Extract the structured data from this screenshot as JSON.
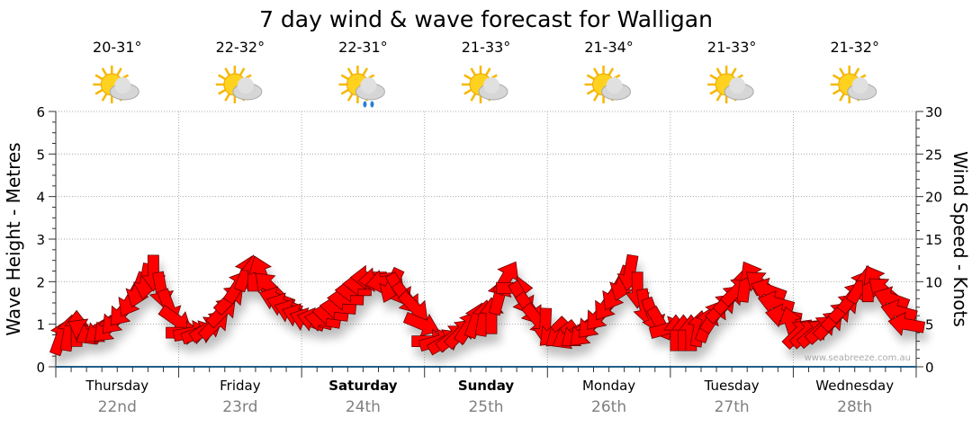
{
  "chart_data": {
    "type": "line",
    "title": "7 day wind & wave forecast for Walligan",
    "ylabel": "Wave Height - Metres",
    "y2label": "Wind Speed - Knots",
    "ylim": [
      0,
      6
    ],
    "y2lim": [
      0,
      30
    ],
    "yticks": [
      "0",
      "1",
      "2",
      "3",
      "4",
      "5",
      "6"
    ],
    "y2ticks": [
      "0",
      "5",
      "10",
      "15",
      "20",
      "25",
      "30"
    ],
    "grid": true,
    "watermark": "www.seabreeze.com.au",
    "days": [
      {
        "name": "Thursday",
        "date": "22nd",
        "temp": "20-31°",
        "weather": "partly-cloudy",
        "bold": false
      },
      {
        "name": "Friday",
        "date": "23rd",
        "temp": "22-32°",
        "weather": "partly-cloudy",
        "bold": false
      },
      {
        "name": "Saturday",
        "date": "24th",
        "temp": "22-31°",
        "weather": "showers",
        "bold": true
      },
      {
        "name": "Sunday",
        "date": "25th",
        "temp": "21-33°",
        "weather": "partly-cloudy",
        "bold": true
      },
      {
        "name": "Monday",
        "date": "26th",
        "temp": "21-34°",
        "weather": "partly-cloudy",
        "bold": false
      },
      {
        "name": "Tuesday",
        "date": "27th",
        "temp": "21-33°",
        "weather": "partly-cloudy",
        "bold": false
      },
      {
        "name": "Wednesday",
        "date": "28th",
        "temp": "21-32°",
        "weather": "partly-cloudy",
        "bold": false
      }
    ],
    "interval_hours": 3,
    "wind_speed_knots": [
      3.5,
      4.5,
      4,
      4.5,
      6.5,
      9,
      11,
      7,
      4,
      4,
      5,
      8,
      11,
      11,
      8,
      6.5,
      5.5,
      5.5,
      7,
      9,
      10.5,
      10,
      9,
      7,
      3,
      3,
      4,
      5.5,
      6,
      10.5,
      8,
      5.5,
      4,
      3.5,
      4,
      6,
      8.5,
      11,
      7,
      5,
      4,
      4,
      5,
      7,
      9,
      10.5,
      9,
      6,
      4,
      4,
      5,
      7,
      9.5,
      10,
      8,
      5
    ],
    "wind_from_deg": [
      200,
      180,
      60,
      45,
      40,
      20,
      0,
      340,
      270,
      250,
      225,
      225,
      200,
      160,
      110,
      110,
      110,
      100,
      95,
      90,
      90,
      80,
      330,
      315,
      270,
      240,
      225,
      200,
      180,
      210,
      330,
      320,
      45,
      60,
      45,
      40,
      30,
      10,
      350,
      330,
      180,
      180,
      200,
      225,
      225,
      150,
      110,
      100,
      225,
      230,
      225,
      225,
      210,
      150,
      110,
      100
    ],
    "colors": {
      "arrow": "#ff0000",
      "grid": "#999999",
      "axis": "#1f5f8b",
      "date": "#808080"
    }
  }
}
